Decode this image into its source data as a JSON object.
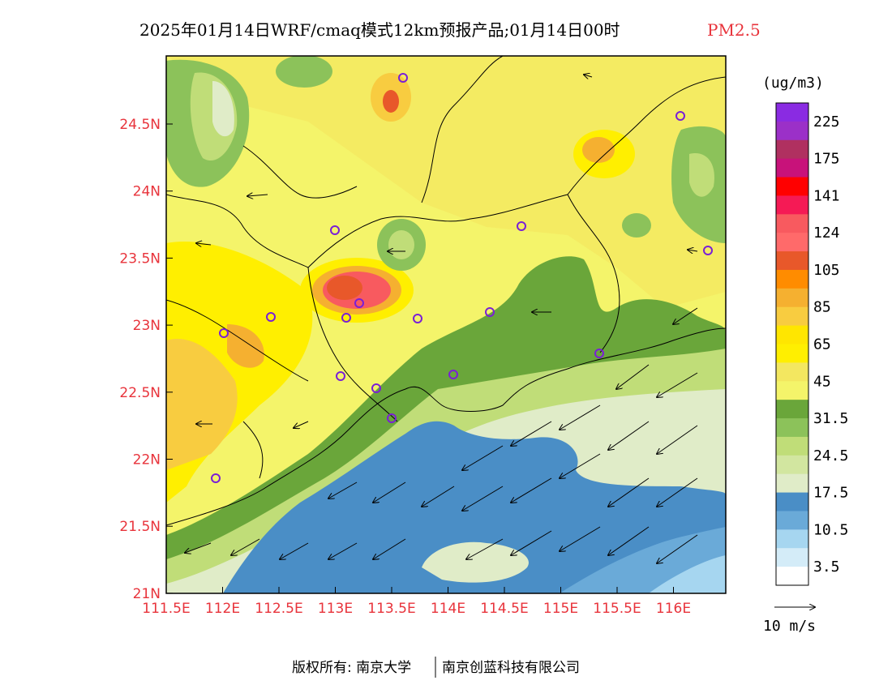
{
  "title": {
    "main": "2025年01月14日WRF/cmaq模式12km预报产品;01月14日00时",
    "variable": "PM2.5"
  },
  "axes": {
    "lat_ticks": [
      "24.5N",
      "24N",
      "23.5N",
      "23N",
      "22.5N",
      "22N",
      "21.5N",
      "21N"
    ],
    "lon_ticks": [
      "111.5E",
      "112E",
      "112.5E",
      "113E",
      "113.5E",
      "114E",
      "114.5E",
      "115E",
      "115.5E",
      "116E"
    ]
  },
  "colorbar": {
    "unit": "(ug/m3)",
    "labels": [
      "225",
      "175",
      "141",
      "124",
      "105",
      "85",
      "65",
      "45",
      "31.5",
      "24.5",
      "17.5",
      "10.5",
      "3.5"
    ],
    "colors": [
      "#8a2be2",
      "#9b30c8",
      "#b03060",
      "#c8127a",
      "#ff0000",
      "#f51a55",
      "#f85a5f",
      "#ff6a6a",
      "#e8582a",
      "#ff8c00",
      "#f5b030",
      "#f8cc40",
      "#ffe600",
      "#ffef00",
      "#f3e760",
      "#f4f46a",
      "#6aa63a",
      "#8cc25a",
      "#c0dd78",
      "#d2e6a0",
      "#e0ecc8",
      "#4a8ec6",
      "#6aaad8",
      "#a6d6f0",
      "#d4ecf8",
      "#ffffff"
    ]
  },
  "wind_legend": {
    "label": "10 m/s"
  },
  "footer": {
    "copyright": "版权所有: 南京大学",
    "company": "南京创蓝科技有限公司"
  }
}
